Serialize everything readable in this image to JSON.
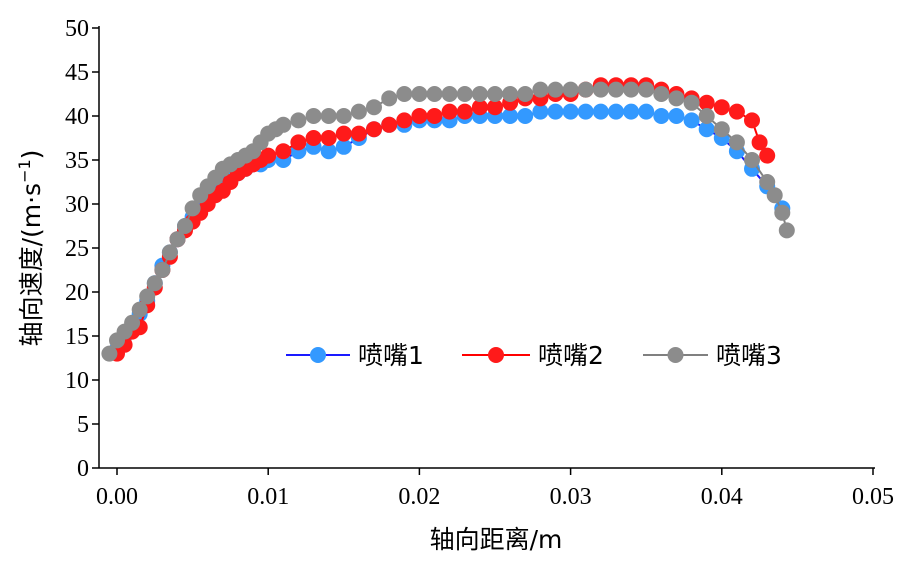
{
  "chart_data": {
    "type": "line",
    "title": "",
    "xlabel": "轴向距离/m",
    "ylabel": "轴向速度/(m·s",
    "ylabel_sup": "−1",
    "ylabel_close": ")",
    "xlim": [
      -0.001,
      0.05
    ],
    "ylim": [
      0,
      50
    ],
    "x_ticks": [
      0.0,
      0.01,
      0.02,
      0.03,
      0.04,
      0.05
    ],
    "x_tick_labels": [
      "0.00",
      "0.01",
      "0.02",
      "0.03",
      "0.04",
      "0.05"
    ],
    "y_ticks": [
      0,
      5,
      10,
      15,
      20,
      25,
      30,
      35,
      40,
      45,
      50
    ],
    "y_tick_labels": [
      "0",
      "5",
      "10",
      "15",
      "20",
      "25",
      "30",
      "35",
      "40",
      "45",
      "50"
    ],
    "grid": false,
    "legend_position": "center-right",
    "series": [
      {
        "name": "喷嘴1",
        "color": "#1a1aff",
        "marker_color": "#3399ff",
        "x": [
          0.0,
          0.0005,
          0.001,
          0.0015,
          0.002,
          0.0025,
          0.003,
          0.0035,
          0.004,
          0.0045,
          0.005,
          0.0055,
          0.006,
          0.0065,
          0.007,
          0.0075,
          0.008,
          0.0085,
          0.009,
          0.0095,
          0.01,
          0.011,
          0.012,
          0.013,
          0.014,
          0.015,
          0.016,
          0.017,
          0.018,
          0.019,
          0.02,
          0.021,
          0.022,
          0.023,
          0.024,
          0.025,
          0.026,
          0.027,
          0.028,
          0.029,
          0.03,
          0.031,
          0.032,
          0.033,
          0.034,
          0.035,
          0.036,
          0.037,
          0.038,
          0.039,
          0.04,
          0.041,
          0.042,
          0.043,
          0.044
        ],
        "y": [
          13.5,
          15.0,
          16.0,
          17.5,
          19.0,
          21.0,
          23.0,
          24.5,
          26.0,
          27.5,
          28.5,
          29.5,
          30.5,
          31.5,
          32.5,
          33.0,
          33.5,
          34.0,
          34.5,
          34.5,
          35.0,
          35.0,
          36.0,
          36.5,
          36.0,
          36.5,
          37.5,
          38.5,
          39.0,
          39.0,
          39.5,
          39.5,
          39.5,
          40.0,
          40.0,
          40.0,
          40.0,
          40.0,
          40.5,
          40.5,
          40.5,
          40.5,
          40.5,
          40.5,
          40.5,
          40.5,
          40.0,
          40.0,
          39.5,
          38.5,
          37.5,
          36.0,
          34.0,
          32.0,
          29.5
        ]
      },
      {
        "name": "喷嘴2",
        "color": "#ff0000",
        "marker_color": "#ff1a1a",
        "x": [
          0.0,
          0.0005,
          0.001,
          0.0015,
          0.002,
          0.0025,
          0.003,
          0.0035,
          0.004,
          0.0045,
          0.005,
          0.0055,
          0.006,
          0.0065,
          0.007,
          0.0075,
          0.008,
          0.0085,
          0.009,
          0.0095,
          0.01,
          0.011,
          0.012,
          0.013,
          0.014,
          0.015,
          0.016,
          0.017,
          0.018,
          0.019,
          0.02,
          0.021,
          0.022,
          0.023,
          0.024,
          0.025,
          0.026,
          0.027,
          0.028,
          0.029,
          0.03,
          0.031,
          0.032,
          0.033,
          0.034,
          0.035,
          0.036,
          0.037,
          0.038,
          0.039,
          0.04,
          0.041,
          0.042,
          0.0425,
          0.043
        ],
        "y": [
          13.0,
          14.0,
          15.5,
          16.0,
          18.5,
          20.5,
          22.5,
          24.0,
          26.0,
          27.0,
          28.0,
          29.0,
          30.0,
          31.0,
          31.5,
          32.5,
          33.5,
          34.0,
          34.5,
          35.0,
          35.5,
          36.0,
          37.0,
          37.5,
          37.5,
          38.0,
          38.0,
          38.5,
          39.0,
          39.5,
          40.0,
          40.0,
          40.5,
          40.5,
          41.0,
          41.0,
          41.5,
          42.0,
          42.0,
          42.5,
          42.5,
          43.0,
          43.5,
          43.5,
          43.5,
          43.5,
          43.0,
          42.5,
          42.0,
          41.5,
          41.0,
          40.5,
          39.5,
          37.0,
          35.5
        ]
      },
      {
        "name": "喷嘴3",
        "color": "#808080",
        "marker_color": "#8c8c8c",
        "x": [
          -0.0005,
          0.0,
          0.0005,
          0.001,
          0.0015,
          0.002,
          0.0025,
          0.003,
          0.0035,
          0.004,
          0.0045,
          0.005,
          0.0055,
          0.006,
          0.0065,
          0.007,
          0.0075,
          0.008,
          0.0085,
          0.009,
          0.0095,
          0.01,
          0.0105,
          0.011,
          0.012,
          0.013,
          0.014,
          0.015,
          0.016,
          0.017,
          0.018,
          0.019,
          0.02,
          0.021,
          0.022,
          0.023,
          0.024,
          0.025,
          0.026,
          0.027,
          0.028,
          0.029,
          0.03,
          0.031,
          0.032,
          0.033,
          0.034,
          0.035,
          0.036,
          0.037,
          0.038,
          0.039,
          0.04,
          0.041,
          0.042,
          0.043,
          0.0435,
          0.044,
          0.0443
        ],
        "y": [
          13.0,
          14.5,
          15.5,
          16.5,
          18.0,
          19.5,
          21.0,
          22.5,
          24.5,
          26.0,
          27.5,
          29.5,
          31.0,
          32.0,
          33.0,
          34.0,
          34.5,
          35.0,
          35.5,
          36.0,
          37.0,
          38.0,
          38.5,
          39.0,
          39.5,
          40.0,
          40.0,
          40.0,
          40.5,
          41.0,
          42.0,
          42.5,
          42.5,
          42.5,
          42.5,
          42.5,
          42.5,
          42.5,
          42.5,
          42.5,
          43.0,
          43.0,
          43.0,
          43.0,
          43.0,
          43.0,
          43.0,
          43.0,
          42.5,
          42.0,
          41.5,
          40.0,
          38.5,
          37.0,
          35.0,
          32.5,
          31.0,
          29.0,
          27.0
        ]
      }
    ]
  }
}
